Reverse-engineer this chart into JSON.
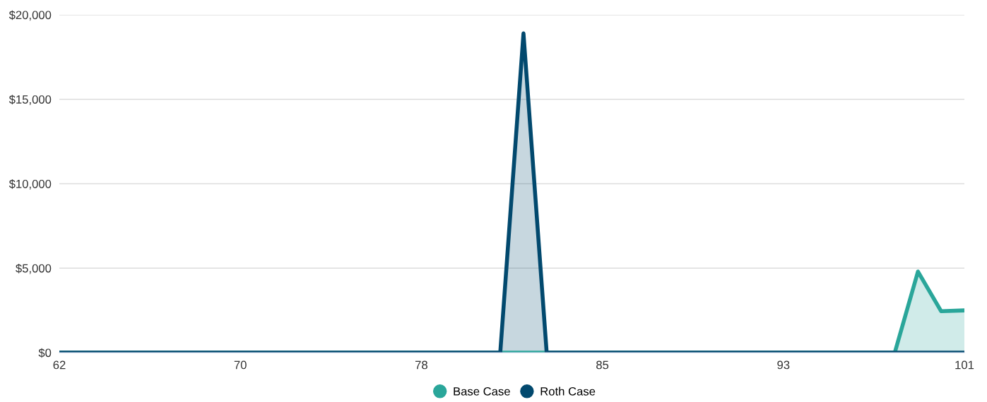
{
  "chart_data": {
    "type": "area",
    "x": [
      62,
      63,
      64,
      65,
      66,
      67,
      68,
      69,
      70,
      71,
      72,
      73,
      74,
      75,
      76,
      77,
      78,
      79,
      80,
      81,
      82,
      83,
      84,
      85,
      86,
      87,
      88,
      89,
      90,
      91,
      92,
      93,
      94,
      95,
      96,
      97,
      98,
      99,
      100,
      101
    ],
    "series": [
      {
        "name": "Base Case",
        "color": "#2aa69a",
        "values": [
          0,
          0,
          0,
          0,
          0,
          0,
          0,
          0,
          0,
          0,
          0,
          0,
          0,
          0,
          0,
          0,
          0,
          0,
          0,
          0,
          0,
          0,
          0,
          0,
          0,
          0,
          0,
          0,
          0,
          0,
          0,
          0,
          0,
          0,
          0,
          0,
          0,
          4800,
          2450,
          2500
        ]
      },
      {
        "name": "Roth Case",
        "color": "#02496e",
        "values": [
          0,
          0,
          0,
          0,
          0,
          0,
          0,
          0,
          0,
          0,
          0,
          0,
          0,
          0,
          0,
          0,
          0,
          0,
          0,
          0,
          18900,
          0,
          0,
          0,
          0,
          0,
          0,
          0,
          0,
          0,
          0,
          0,
          0,
          0,
          0,
          0,
          0,
          0,
          0,
          0
        ]
      }
    ],
    "xlim": [
      62,
      101
    ],
    "xticks": [
      62,
      {
        "value": 69.8,
        "label": "70"
      },
      {
        "value": 77.6,
        "label": "78"
      },
      {
        "value": 85.4,
        "label": "85"
      },
      {
        "value": 93.2,
        "label": "93"
      },
      101
    ],
    "ylim": [
      0,
      20000
    ],
    "yticks": [
      {
        "value": 0,
        "label": "$0"
      },
      {
        "value": 5000,
        "label": "$5,000"
      },
      {
        "value": 10000,
        "label": "$10,000"
      },
      {
        "value": 15000,
        "label": "$15,000"
      },
      {
        "value": 20000,
        "label": "$20,000"
      }
    ],
    "grid": "y",
    "legend": "bottom"
  }
}
